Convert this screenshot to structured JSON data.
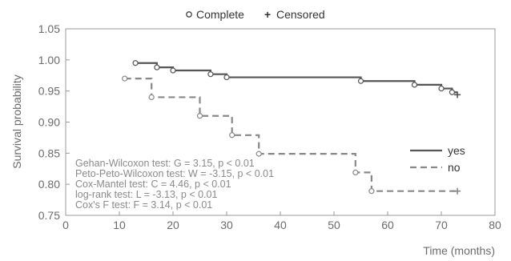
{
  "chart_data": {
    "type": "line",
    "subtype": "kaplan-meier step",
    "xlabel": "Time (months)",
    "ylabel": "Survival probability",
    "xlim": [
      0,
      80
    ],
    "ylim": [
      0.75,
      1.05
    ],
    "x_ticks": [
      0,
      10,
      20,
      30,
      40,
      50,
      60,
      70,
      80
    ],
    "y_ticks": [
      0.75,
      0.8,
      0.85,
      0.9,
      0.95,
      1.0,
      1.05
    ],
    "y_tick_labels": [
      "0.75",
      "0.80",
      "0.85",
      "0.90",
      "0.95",
      "1.00",
      "1.05"
    ],
    "grid": false,
    "top_legend": {
      "complete_label": "Complete",
      "censored_label": "Censored",
      "complete_symbol": "○",
      "censored_symbol": "+"
    },
    "series_legend_position": "right",
    "series": [
      {
        "name": "yes",
        "color": "#555555",
        "style": "solid",
        "start": [
          13,
          0.995
        ],
        "steps": [
          [
            17,
            0.988
          ],
          [
            20,
            0.983
          ],
          [
            27,
            0.977
          ],
          [
            30,
            0.972
          ],
          [
            55,
            0.966
          ],
          [
            65,
            0.96
          ],
          [
            70,
            0.954
          ],
          [
            72,
            0.948
          ]
        ],
        "complete_points": [
          [
            13,
            0.995
          ],
          [
            17,
            0.988
          ],
          [
            20,
            0.983
          ],
          [
            27,
            0.977
          ],
          [
            30,
            0.972
          ],
          [
            55,
            0.966
          ],
          [
            65,
            0.96
          ],
          [
            70,
            0.954
          ],
          [
            72,
            0.948
          ]
        ],
        "censored_points": [
          [
            73,
            0.944
          ]
        ]
      },
      {
        "name": "no",
        "color": "#888888",
        "style": "dashed",
        "start": [
          11,
          0.97
        ],
        "steps": [
          [
            16,
            0.94
          ],
          [
            25,
            0.91
          ],
          [
            31,
            0.879
          ],
          [
            36,
            0.849
          ],
          [
            54,
            0.819
          ],
          [
            57,
            0.789
          ]
        ],
        "complete_points": [
          [
            11,
            0.97
          ],
          [
            16,
            0.94
          ],
          [
            25,
            0.91
          ],
          [
            31,
            0.879
          ],
          [
            36,
            0.849
          ],
          [
            54,
            0.819
          ],
          [
            57,
            0.789
          ]
        ],
        "censored_points": [
          [
            73,
            0.789
          ]
        ]
      }
    ],
    "annotations": [
      "Gehan-Wilcoxon test: G = 3.15, p < 0.01",
      "Peto-Peto-Wilcoxon test: W = -3.15, p < 0.01",
      "Cox-Mantel test: C = 4.46, p < 0.01",
      "log-rank test: L = -3.13, p < 0.01",
      "Cox's F test: F = 3.14, p < 0.01"
    ]
  }
}
